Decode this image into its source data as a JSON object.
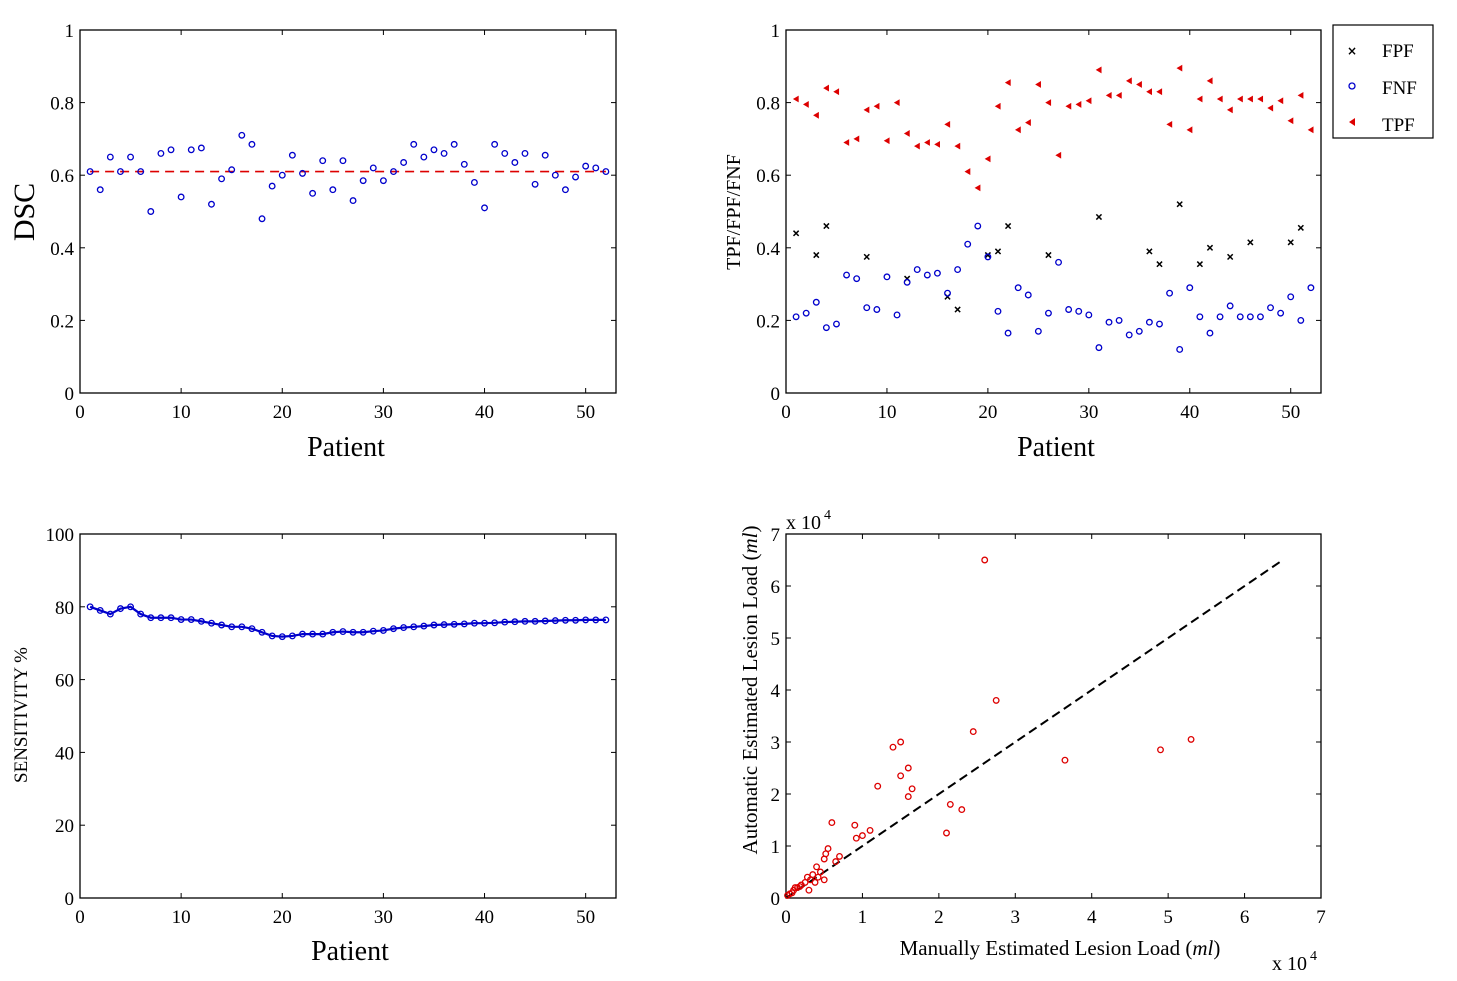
{
  "colors": {
    "blue": "#0000cc",
    "red": "#dd0000",
    "black": "#000000"
  },
  "chart_data": [
    {
      "id": "dsc",
      "type": "scatter",
      "title": "",
      "xlabel": "Patient",
      "ylabel": "DSC",
      "xlim": [
        0,
        53
      ],
      "ylim": [
        0,
        1
      ],
      "xticks": [
        0,
        10,
        20,
        30,
        40,
        50
      ],
      "yticks": [
        0,
        0.2,
        0.4,
        0.6,
        0.8,
        1
      ],
      "ytick_labels": [
        "0",
        "0.2",
        "0.4",
        "0.6",
        "0.8",
        "1"
      ],
      "series": [
        {
          "name": "DSC",
          "marker": "circle",
          "color": "#0000cc",
          "x": [
            1,
            2,
            3,
            4,
            5,
            6,
            7,
            8,
            9,
            10,
            11,
            12,
            13,
            14,
            15,
            16,
            17,
            18,
            19,
            20,
            21,
            22,
            23,
            24,
            25,
            26,
            27,
            28,
            29,
            30,
            31,
            32,
            33,
            34,
            35,
            36,
            37,
            38,
            39,
            40,
            41,
            42,
            43,
            44,
            45,
            46,
            47,
            48,
            49,
            50,
            51,
            52
          ],
          "y": [
            0.61,
            0.56,
            0.65,
            0.61,
            0.65,
            0.61,
            0.5,
            0.66,
            0.67,
            0.54,
            0.67,
            0.675,
            0.52,
            0.59,
            0.615,
            0.71,
            0.685,
            0.48,
            0.57,
            0.6,
            0.655,
            0.605,
            0.55,
            0.64,
            0.56,
            0.64,
            0.53,
            0.585,
            0.62,
            0.585,
            0.61,
            0.635,
            0.685,
            0.65,
            0.67,
            0.66,
            0.685,
            0.63,
            0.58,
            0.51,
            0.685,
            0.66,
            0.635,
            0.66,
            0.575,
            0.655,
            0.6,
            0.56,
            0.595,
            0.625,
            0.62,
            0.61
          ]
        }
      ],
      "reference_line": {
        "y": 0.61,
        "style": "dashed",
        "color": "#dd0000"
      }
    },
    {
      "id": "fractions",
      "type": "scatter",
      "title": "",
      "xlabel": "Patient",
      "ylabel": "TPF/FPF/FNF",
      "xlim": [
        0,
        53
      ],
      "ylim": [
        0,
        1
      ],
      "xticks": [
        0,
        10,
        20,
        30,
        40,
        50
      ],
      "yticks": [
        0,
        0.2,
        0.4,
        0.6,
        0.8,
        1
      ],
      "ytick_labels": [
        "0",
        "0.2",
        "0.4",
        "0.6",
        "0.8",
        "1"
      ],
      "legend": {
        "placement": "outside-top-right",
        "entries": [
          "FPF",
          "FNF",
          "TPF"
        ]
      },
      "series": [
        {
          "name": "FPF",
          "marker": "x",
          "color": "#000000",
          "x": [
            1,
            3,
            4,
            8,
            12,
            16,
            17,
            20,
            21,
            22,
            26,
            31,
            36,
            37,
            39,
            41,
            42,
            44,
            46,
            50,
            51
          ],
          "y": [
            0.44,
            0.38,
            0.46,
            0.375,
            0.315,
            0.265,
            0.23,
            0.38,
            0.39,
            0.46,
            0.38,
            0.485,
            0.39,
            0.355,
            0.52,
            0.355,
            0.4,
            0.375,
            0.415,
            0.415,
            0.455
          ]
        },
        {
          "name": "FNF",
          "marker": "circle",
          "color": "#0000cc",
          "x": [
            1,
            2,
            3,
            4,
            5,
            6,
            7,
            8,
            9,
            10,
            11,
            12,
            13,
            14,
            15,
            16,
            17,
            18,
            19,
            20,
            21,
            22,
            23,
            24,
            25,
            26,
            27,
            28,
            29,
            30,
            31,
            32,
            33,
            34,
            35,
            36,
            37,
            38,
            39,
            40,
            41,
            42,
            43,
            44,
            45,
            46,
            47,
            48,
            49,
            50,
            51,
            52
          ],
          "y": [
            0.21,
            0.22,
            0.25,
            0.18,
            0.19,
            0.325,
            0.315,
            0.235,
            0.23,
            0.32,
            0.215,
            0.305,
            0.34,
            0.325,
            0.33,
            0.275,
            0.34,
            0.41,
            0.46,
            0.375,
            0.225,
            0.165,
            0.29,
            0.27,
            0.17,
            0.22,
            0.36,
            0.23,
            0.225,
            0.215,
            0.125,
            0.195,
            0.2,
            0.16,
            0.17,
            0.195,
            0.19,
            0.275,
            0.12,
            0.29,
            0.21,
            0.165,
            0.21,
            0.24,
            0.21,
            0.21,
            0.21,
            0.235,
            0.22,
            0.265,
            0.2,
            0.29
          ]
        },
        {
          "name": "TPF",
          "marker": "triangle-left",
          "color": "#dd0000",
          "x": [
            1,
            2,
            3,
            4,
            5,
            6,
            7,
            8,
            9,
            10,
            11,
            12,
            13,
            14,
            15,
            16,
            17,
            18,
            19,
            20,
            21,
            22,
            23,
            24,
            25,
            26,
            27,
            28,
            29,
            30,
            31,
            32,
            33,
            34,
            35,
            36,
            37,
            38,
            39,
            40,
            41,
            42,
            43,
            44,
            45,
            46,
            47,
            48,
            49,
            50,
            51,
            52
          ],
          "y": [
            0.81,
            0.795,
            0.765,
            0.84,
            0.83,
            0.69,
            0.7,
            0.78,
            0.79,
            0.695,
            0.8,
            0.715,
            0.68,
            0.69,
            0.685,
            0.74,
            0.68,
            0.61,
            0.565,
            0.645,
            0.79,
            0.855,
            0.725,
            0.745,
            0.85,
            0.8,
            0.655,
            0.79,
            0.795,
            0.805,
            0.89,
            0.82,
            0.82,
            0.86,
            0.85,
            0.83,
            0.83,
            0.74,
            0.895,
            0.725,
            0.81,
            0.86,
            0.81,
            0.78,
            0.81,
            0.81,
            0.81,
            0.785,
            0.805,
            0.75,
            0.82,
            0.725
          ]
        }
      ]
    },
    {
      "id": "sensitivity",
      "type": "line",
      "title": "",
      "xlabel": "Patient",
      "ylabel": "SENSITIVITY %",
      "xlim": [
        0,
        53
      ],
      "ylim": [
        0,
        100
      ],
      "xticks": [
        0,
        10,
        20,
        30,
        40,
        50
      ],
      "yticks": [
        0,
        20,
        40,
        60,
        80,
        100
      ],
      "ytick_labels": [
        "0",
        "20",
        "40",
        "60",
        "80",
        "100"
      ],
      "series": [
        {
          "name": "Sensitivity",
          "marker": "circle",
          "color": "#0000cc",
          "x": [
            1,
            2,
            3,
            4,
            5,
            6,
            7,
            8,
            9,
            10,
            11,
            12,
            13,
            14,
            15,
            16,
            17,
            18,
            19,
            20,
            21,
            22,
            23,
            24,
            25,
            26,
            27,
            28,
            29,
            30,
            31,
            32,
            33,
            34,
            35,
            36,
            37,
            38,
            39,
            40,
            41,
            42,
            43,
            44,
            45,
            46,
            47,
            48,
            49,
            50,
            51,
            52
          ],
          "y": [
            80,
            79,
            78,
            79.5,
            80,
            78,
            77,
            77,
            77,
            76.5,
            76.5,
            76,
            75.5,
            75,
            74.5,
            74.5,
            74,
            73,
            72,
            71.8,
            72,
            72.5,
            72.5,
            72.5,
            73,
            73.2,
            73,
            73,
            73.3,
            73.5,
            74,
            74.3,
            74.5,
            74.7,
            75,
            75.1,
            75.2,
            75.3,
            75.5,
            75.5,
            75.6,
            75.8,
            75.9,
            76,
            76,
            76.1,
            76.2,
            76.3,
            76.3,
            76.4,
            76.4,
            76.4
          ]
        }
      ]
    },
    {
      "id": "lesion-load",
      "type": "scatter",
      "title": "",
      "xlabel_parts": [
        "Manually Estimated Lesion Load (",
        "ml",
        ")"
      ],
      "ylabel_parts": [
        "Automatic Estimated Lesion Load  (",
        "ml",
        ")"
      ],
      "x_multiplier_label": [
        "x 10",
        "4"
      ],
      "y_multiplier_label": [
        "x 10",
        "4"
      ],
      "xlim": [
        0,
        7
      ],
      "ylim": [
        0,
        7
      ],
      "xticks": [
        0,
        1,
        2,
        3,
        4,
        5,
        6,
        7
      ],
      "yticks": [
        0,
        1,
        2,
        3,
        4,
        5,
        6,
        7
      ],
      "ytick_labels": [
        "0",
        "1",
        "2",
        "3",
        "4",
        "5",
        "6",
        "7"
      ],
      "reference_line": {
        "x": [
          0,
          6.5
        ],
        "y": [
          0,
          6.5
        ],
        "style": "dashed",
        "color": "#000000"
      },
      "series": [
        {
          "name": "Lesion load",
          "marker": "circle",
          "color": "#dd0000",
          "x": [
            0.02,
            0.05,
            0.08,
            0.1,
            0.12,
            0.15,
            0.18,
            0.2,
            0.25,
            0.28,
            0.3,
            0.32,
            0.35,
            0.38,
            0.4,
            0.42,
            0.45,
            0.5,
            0.5,
            0.52,
            0.55,
            0.6,
            0.65,
            0.7,
            0.9,
            0.92,
            1.0,
            1.1,
            1.2,
            1.4,
            1.5,
            1.5,
            1.6,
            1.6,
            1.65,
            2.1,
            2.15,
            2.3,
            2.45,
            2.6,
            2.75,
            3.65,
            4.9,
            5.3
          ],
          "y": [
            0.05,
            0.08,
            0.1,
            0.15,
            0.2,
            0.2,
            0.22,
            0.25,
            0.3,
            0.4,
            0.15,
            0.35,
            0.45,
            0.3,
            0.6,
            0.4,
            0.5,
            0.35,
            0.75,
            0.85,
            0.95,
            1.45,
            0.7,
            0.8,
            1.4,
            1.15,
            1.2,
            1.3,
            2.15,
            2.9,
            3.0,
            2.35,
            1.95,
            2.5,
            2.1,
            1.25,
            1.8,
            1.7,
            3.2,
            6.5,
            3.8,
            2.65,
            2.85,
            3.05
          ]
        }
      ]
    }
  ]
}
